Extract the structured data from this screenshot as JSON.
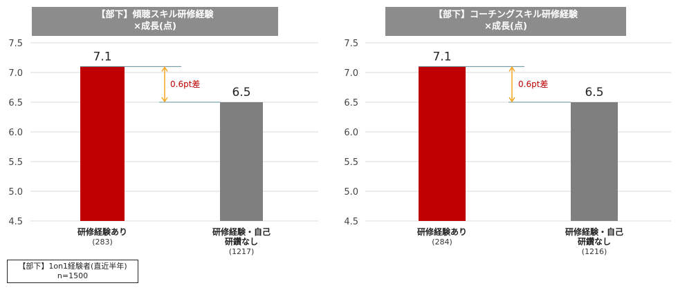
{
  "sample_note": {
    "line1": "【部下】1on1経験者(直近半年)",
    "line2": "n=1500"
  },
  "colors": {
    "bar_with_training": "#c00000",
    "bar_without_training": "#7f7f7f",
    "title_bg": "#8c8c8c",
    "diff_arrow": "#f5a623",
    "diff_text": "#c00000"
  },
  "chart_data": [
    {
      "type": "bar",
      "title_line1": "【部下】傾聴スキル研修経験",
      "title_line2": "×成長(点)",
      "ylim": [
        4.5,
        7.5
      ],
      "yticks": [
        "4.5",
        "5.0",
        "5.5",
        "6.0",
        "6.5",
        "7.0",
        "7.5"
      ],
      "categories": [
        {
          "label_lines": [
            "研修経験あり"
          ],
          "n": "(283)"
        },
        {
          "label_lines": [
            "研修経験・自己",
            "研鑽なし"
          ],
          "n": "(1217)"
        }
      ],
      "values": [
        7.1,
        6.5
      ],
      "value_labels": [
        "7.1",
        "6.5"
      ],
      "difference_label": "0.6pt差"
    },
    {
      "type": "bar",
      "title_line1": "【部下】コーチングスキル研修経験",
      "title_line2": "×成長(点)",
      "ylim": [
        4.5,
        7.5
      ],
      "yticks": [
        "4.5",
        "5.0",
        "5.5",
        "6.0",
        "6.5",
        "7.0",
        "7.5"
      ],
      "categories": [
        {
          "label_lines": [
            "研修経験あり"
          ],
          "n": "(284)"
        },
        {
          "label_lines": [
            "研修経験・自己",
            "研鑽なし"
          ],
          "n": "(1216)"
        }
      ],
      "values": [
        7.1,
        6.5
      ],
      "value_labels": [
        "7.1",
        "6.5"
      ],
      "difference_label": "0.6pt差"
    }
  ]
}
